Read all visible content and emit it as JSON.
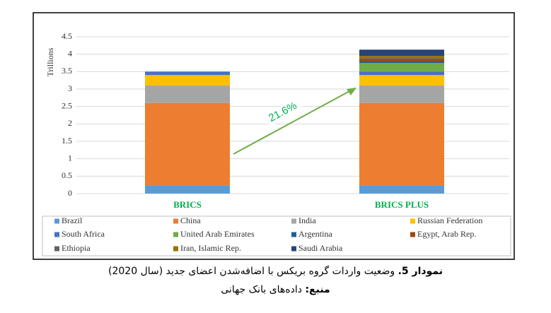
{
  "chart_data": {
    "type": "stacked-bar",
    "y_label": "Trillions",
    "categories": [
      "BRICS",
      "BRICS PLUS"
    ],
    "series": [
      {
        "name": "Brazil",
        "color": "#5b9bd5",
        "values": [
          0.24,
          0.24
        ]
      },
      {
        "name": "China",
        "color": "#ed7d31",
        "values": [
          2.36,
          2.36
        ]
      },
      {
        "name": "India",
        "color": "#a5a5a5",
        "values": [
          0.5,
          0.5
        ]
      },
      {
        "name": "Russian Federation",
        "color": "#ffc000",
        "values": [
          0.3,
          0.3
        ]
      },
      {
        "name": "South Africa",
        "color": "#4472c4",
        "values": [
          0.1,
          0.1
        ]
      },
      {
        "name": "United Arab Emirates",
        "color": "#70ad47",
        "values": [
          null,
          0.25
        ]
      },
      {
        "name": "Argentina",
        "color": "#255e91",
        "values": [
          null,
          0.05
        ]
      },
      {
        "name": "Egypt, Arab Rep.",
        "color": "#9e480e",
        "values": [
          null,
          0.07
        ]
      },
      {
        "name": "Ethiopia",
        "color": "#636363",
        "values": [
          null,
          0.02
        ]
      },
      {
        "name": "Iran, Islamic Rep.",
        "color": "#997300",
        "values": [
          null,
          0.06
        ]
      },
      {
        "name": "Saudi Arabia",
        "color": "#264478",
        "values": [
          null,
          0.18
        ]
      }
    ],
    "ylim": [
      0,
      4.5
    ],
    "yticks": [
      0,
      0.5,
      1,
      1.5,
      2,
      2.5,
      3,
      3.5,
      4,
      4.5
    ],
    "grid": true,
    "annotation": "21.6%",
    "category_label_color": "#00b050"
  },
  "caption": {
    "label": "نمودار 5.",
    "text": "وضعیت واردات گروه بریکس با اضافه‌شدن اعضای جدید (سال 2020)"
  },
  "source": {
    "label": "منبع:",
    "text": "داده‌های بانک جهانی"
  }
}
